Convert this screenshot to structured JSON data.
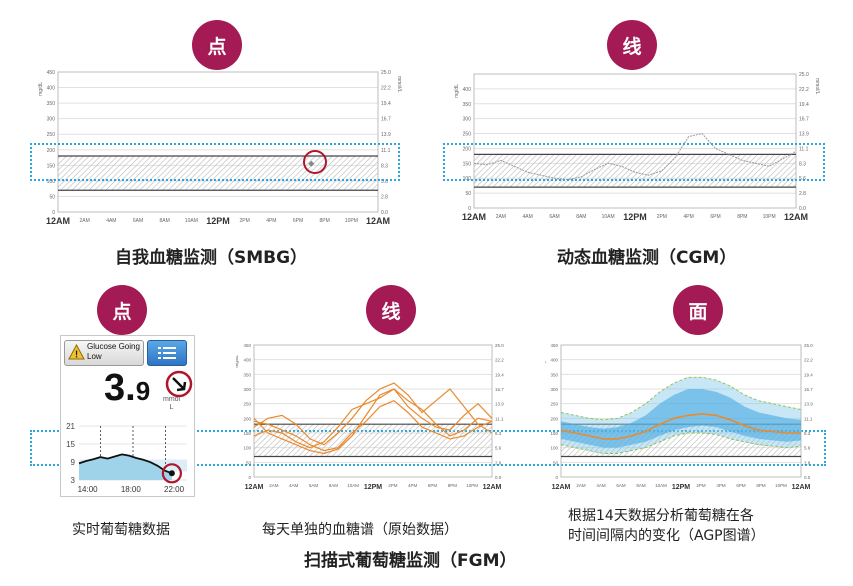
{
  "badges": {
    "point": "点",
    "line": "线",
    "area": "面"
  },
  "titles": {
    "smbg": "自我血糖监测（SMBG）",
    "cgm": "动态血糖监测（CGM）",
    "fgm": "扫描式葡萄糖监测（FGM）"
  },
  "captions": {
    "realtime": "实时葡萄糖数据",
    "daily": "每天单独的血糖谱（原始数据）",
    "agp_line1": "根据14天数据分析葡萄糖在各",
    "agp_line2": "时间间隔内的变化（AGP图谱）"
  },
  "chart_axes": {
    "left_unit": "mg/dL",
    "right_unit": "mmol/L",
    "left_ticks": [
      "450",
      "400",
      "350",
      "300",
      "250",
      "200",
      "150",
      "100",
      "50",
      "0"
    ],
    "left_ticks_cgm": [
      "400",
      "350",
      "300",
      "250",
      "200",
      "150",
      "100",
      "50",
      "0"
    ],
    "right_ticks": [
      "25.0",
      "22.2",
      "19.4",
      "16.7",
      "13.9",
      "11.1",
      "8.3",
      "5.6",
      "2.8",
      "0.0"
    ],
    "x_ticks": [
      "12AM",
      "2AM",
      "4AM",
      "6AM",
      "8AM",
      "10AM",
      "12PM",
      "2PM",
      "4PM",
      "6PM",
      "8PM",
      "10PM",
      "12AM"
    ]
  },
  "device": {
    "alert_text_1": "Glucose Going",
    "alert_text_2": "Low",
    "value_big": "3.",
    "value_small": "9",
    "unit_1": "mmol",
    "unit_2": "L",
    "y_ticks": [
      "21",
      "15",
      "9",
      "3"
    ],
    "x_ticks": [
      "14:00",
      "18:00",
      "22:00"
    ]
  },
  "chart_data": [
    {
      "type": "scatter",
      "title": "自我血糖监测（SMBG）",
      "x_ticks": [
        "12AM",
        "2AM",
        "4AM",
        "6AM",
        "8AM",
        "10AM",
        "12PM",
        "2PM",
        "4PM",
        "6PM",
        "8PM",
        "10PM",
        "12AM"
      ],
      "ylim": [
        0,
        450
      ],
      "target_range": [
        70,
        180
      ],
      "points": [
        {
          "x": "7PM",
          "y": 155
        }
      ]
    },
    {
      "type": "line",
      "title": "动态血糖监测（CGM）",
      "ylim": [
        0,
        450
      ],
      "target_range": [
        70,
        180
      ],
      "series": [
        {
          "values": [
            150,
            145,
            160,
            140,
            120,
            110,
            100,
            95,
            105,
            130,
            150,
            140,
            120,
            110,
            125,
            170,
            240,
            250,
            200,
            180,
            160,
            150,
            140,
            165,
            190
          ]
        }
      ]
    },
    {
      "type": "line",
      "title": "扫描式葡萄糖监测（FGM）",
      "ylim": [
        0,
        450
      ],
      "target_range": [
        70,
        180
      ],
      "series": [
        {
          "values": [
            200,
            150,
            130,
            110,
            90,
            80,
            95,
            140,
            210,
            280,
            300,
            260,
            230,
            180,
            140,
            160,
            200,
            190
          ]
        },
        {
          "values": [
            170,
            200,
            210,
            180,
            130,
            110,
            150,
            200,
            260,
            300,
            320,
            280,
            220,
            260,
            300,
            240,
            180,
            150
          ]
        },
        {
          "values": [
            140,
            160,
            150,
            120,
            100,
            120,
            170,
            230,
            250,
            270,
            300,
            240,
            200,
            170,
            160,
            210,
            250,
            200
          ]
        },
        {
          "values": [
            190,
            180,
            160,
            140,
            110,
            90,
            100,
            150,
            190,
            240,
            260,
            220,
            170,
            150,
            130,
            140,
            170,
            190
          ]
        }
      ]
    },
    {
      "type": "area",
      "title": "根据14天数据分析葡萄糖在各时间间隔内的变化（AGP图谱）",
      "ylim": [
        0,
        450
      ],
      "target_range": [
        70,
        180
      ],
      "median": [
        160,
        150,
        140,
        130,
        130,
        140,
        155,
        180,
        200,
        210,
        215,
        210,
        195,
        175,
        160,
        155,
        150,
        150
      ],
      "p25_p75": [
        [
          130,
          190
        ],
        [
          120,
          180
        ],
        [
          110,
          170
        ],
        [
          100,
          165
        ],
        [
          100,
          170
        ],
        [
          110,
          185
        ],
        [
          120,
          210
        ],
        [
          140,
          250
        ],
        [
          160,
          280
        ],
        [
          170,
          300
        ],
        [
          175,
          300
        ],
        [
          170,
          290
        ],
        [
          155,
          270
        ],
        [
          140,
          240
        ],
        [
          130,
          220
        ],
        [
          125,
          210
        ],
        [
          120,
          200
        ],
        [
          125,
          195
        ]
      ],
      "p10_p90": [
        [
          110,
          220
        ],
        [
          100,
          210
        ],
        [
          90,
          200
        ],
        [
          80,
          195
        ],
        [
          80,
          200
        ],
        [
          90,
          220
        ],
        [
          100,
          250
        ],
        [
          120,
          290
        ],
        [
          140,
          320
        ],
        [
          150,
          340
        ],
        [
          150,
          340
        ],
        [
          145,
          330
        ],
        [
          130,
          310
        ],
        [
          120,
          280
        ],
        [
          110,
          260
        ],
        [
          105,
          250
        ],
        [
          100,
          240
        ],
        [
          105,
          230
        ]
      ]
    }
  ]
}
